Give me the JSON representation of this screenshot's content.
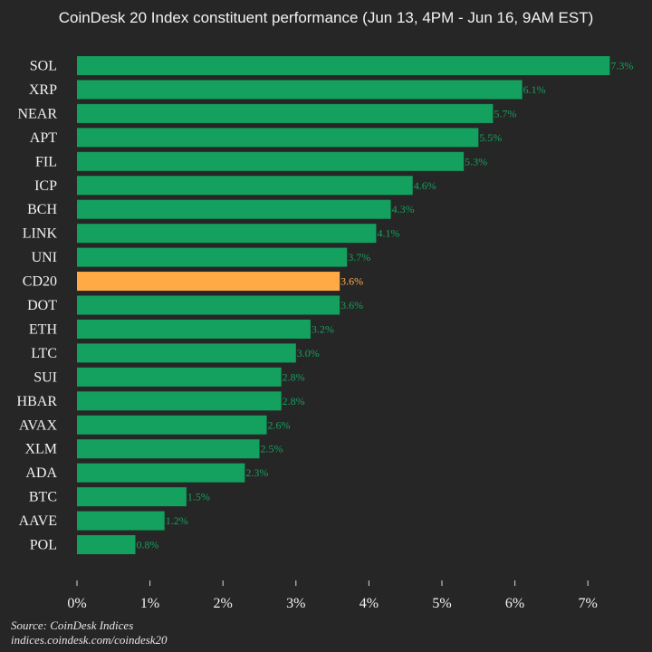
{
  "chart_data": {
    "type": "bar",
    "orientation": "horizontal",
    "title": "CoinDesk 20 Index constituent performance (Jun 13, 4PM - Jun 16, 9AM EST)",
    "categories": [
      "SOL",
      "XRP",
      "NEAR",
      "APT",
      "FIL",
      "ICP",
      "BCH",
      "LINK",
      "UNI",
      "CD20",
      "DOT",
      "ETH",
      "LTC",
      "SUI",
      "HBAR",
      "AVAX",
      "XLM",
      "ADA",
      "BTC",
      "AAVE",
      "POL"
    ],
    "values": [
      7.3,
      6.1,
      5.7,
      5.5,
      5.3,
      4.6,
      4.3,
      4.1,
      3.7,
      3.6,
      3.6,
      3.2,
      3.0,
      2.8,
      2.8,
      2.6,
      2.5,
      2.3,
      1.5,
      1.2,
      0.8
    ],
    "value_labels": [
      "7.3%",
      "6.1%",
      "5.7%",
      "5.5%",
      "5.3%",
      "4.6%",
      "4.3%",
      "4.1%",
      "3.7%",
      "3.6%",
      "3.6%",
      "3.2%",
      "3.0%",
      "2.8%",
      "2.8%",
      "2.6%",
      "2.5%",
      "2.3%",
      "1.5%",
      "1.2%",
      "0.8%"
    ],
    "highlight": "CD20",
    "xlim": [
      0,
      7.5
    ],
    "xticks": [
      0,
      1,
      2,
      3,
      4,
      5,
      6,
      7
    ],
    "xtick_labels": [
      "0%",
      "1%",
      "2%",
      "3%",
      "4%",
      "5%",
      "6%",
      "7%"
    ],
    "grid": false,
    "colors": {
      "bar": "#14a05e",
      "highlight": "#ffaa45",
      "background": "#262626",
      "text": "#f2f2f2",
      "axis": "#d9d9d9"
    }
  },
  "source": {
    "line1": "Source: CoinDesk Indices",
    "line2": "indices.coindesk.com/coindesk20"
  }
}
